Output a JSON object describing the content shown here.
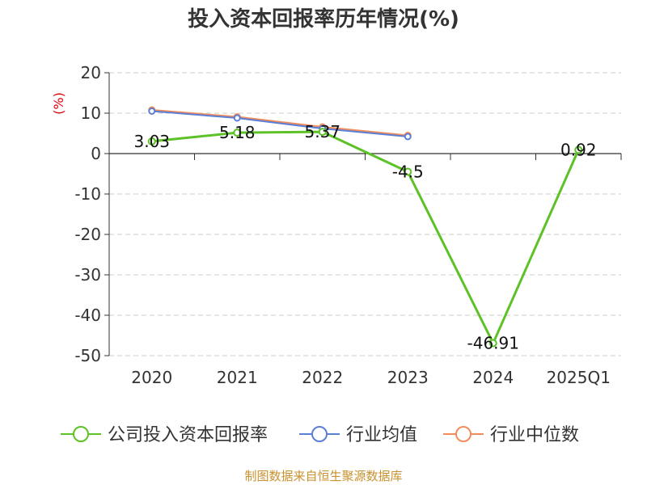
{
  "chart_data": {
    "type": "line",
    "title": "投入资本回报率历年情况(%)",
    "ylabel": "(%)",
    "xlabel": "",
    "categories": [
      "2020",
      "2021",
      "2022",
      "2023",
      "2024",
      "2025Q1"
    ],
    "ylim": [
      -50,
      20
    ],
    "yticks": [
      20,
      10,
      0,
      -10,
      -20,
      -30,
      -40,
      -50
    ],
    "grid": true,
    "legend_position": "bottom",
    "series": [
      {
        "name": "公司投入资本回报率",
        "color": "#5cc227",
        "values": [
          3.03,
          5.18,
          5.37,
          -4.5,
          -46.91,
          0.92
        ],
        "labels": [
          "3.03",
          "5.18",
          "5.37",
          "-4.5",
          "-46.91",
          "0.92"
        ]
      },
      {
        "name": "行业均值",
        "color": "#5b7fd6",
        "values": [
          10.5,
          8.8,
          6.2,
          4.2,
          null,
          null
        ]
      },
      {
        "name": "行业中位数",
        "color": "#f28c5a",
        "values": [
          10.8,
          9.1,
          6.6,
          4.5,
          null,
          null
        ]
      }
    ],
    "source": "制图数据来自恒生聚源数据库"
  }
}
